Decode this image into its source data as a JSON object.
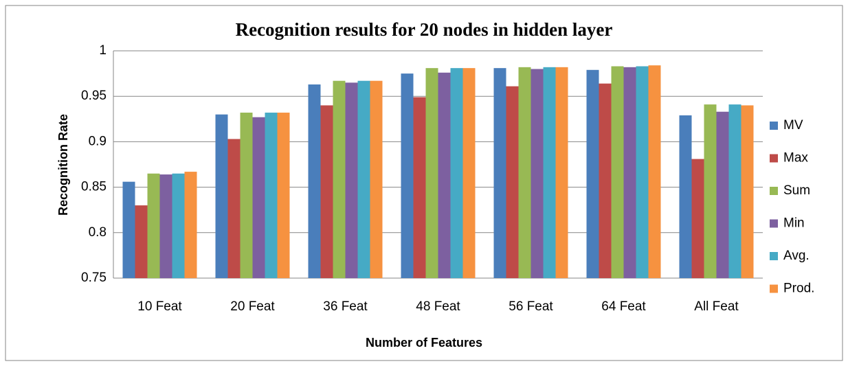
{
  "chart_data": {
    "type": "bar",
    "title": "Recognition  results for 20 nodes in hidden layer",
    "x_label": "Number of Features",
    "y_label": "Recognition Rate",
    "categories": [
      "10 Feat",
      "20 Feat",
      "36 Feat",
      "48 Feat",
      "56 Feat",
      "64 Feat",
      "All Feat"
    ],
    "series": [
      {
        "name": "MV",
        "color": "#4a7ebb",
        "values": [
          0.856,
          0.93,
          0.963,
          0.975,
          0.981,
          0.979,
          0.929
        ]
      },
      {
        "name": "Max",
        "color": "#be4b48",
        "values": [
          0.83,
          0.903,
          0.94,
          0.949,
          0.961,
          0.964,
          0.881
        ]
      },
      {
        "name": "Sum",
        "color": "#98b954",
        "values": [
          0.865,
          0.932,
          0.967,
          0.981,
          0.982,
          0.983,
          0.941
        ]
      },
      {
        "name": "Min",
        "color": "#7d60a0",
        "values": [
          0.864,
          0.927,
          0.965,
          0.976,
          0.98,
          0.982,
          0.933
        ]
      },
      {
        "name": "Avg.",
        "color": "#46aac5",
        "values": [
          0.865,
          0.932,
          0.967,
          0.981,
          0.982,
          0.983,
          0.941
        ]
      },
      {
        "name": "Prod.",
        "color": "#f69240",
        "values": [
          0.867,
          0.932,
          0.967,
          0.981,
          0.982,
          0.984,
          0.94
        ]
      }
    ],
    "ylim": [
      0.75,
      1
    ],
    "yticks": [
      0.75,
      0.8,
      0.85,
      0.9,
      0.95,
      1
    ],
    "grid": true,
    "legend": "right"
  }
}
